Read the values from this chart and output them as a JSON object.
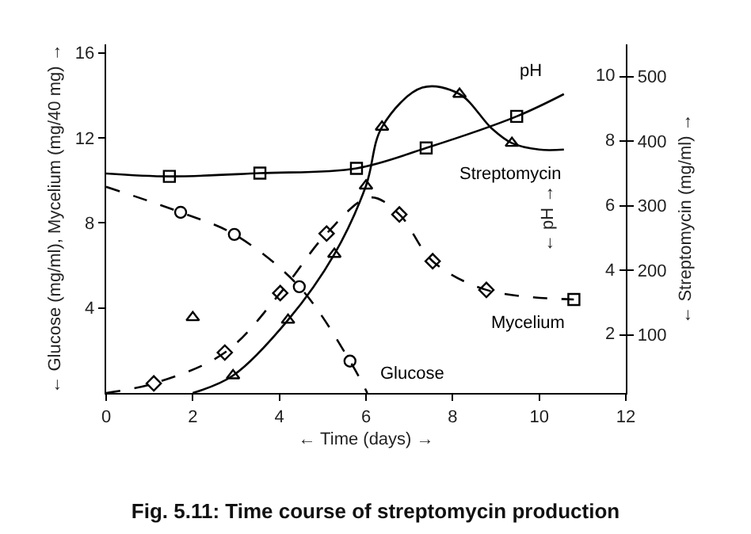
{
  "chart_data": {
    "type": "line",
    "title": "Fig. 5.11: Time course of streptomycin production",
    "xlabel": "← Time (days) →",
    "ylabel": "← Glucose (mg/ml), Mycelium (mg/40 mg) →",
    "y2label": "← pH →",
    "y3label": "← Streptomycin (mg/ml) →",
    "xlim": [
      0,
      12
    ],
    "xticks": [
      0,
      2,
      4,
      6,
      8,
      10,
      12
    ],
    "ylim": [
      0,
      16.4
    ],
    "yticks": [
      4,
      8,
      12,
      16
    ],
    "y2lim": [
      0.2,
      11
    ],
    "y2ticks": [
      2,
      4,
      6,
      8,
      10
    ],
    "y3lim": [
      10,
      550
    ],
    "y3ticks": [
      100,
      200,
      300,
      400,
      500
    ],
    "series": [
      {
        "name": "pH",
        "axis": "y2",
        "color": "#000000",
        "line_style": "solid",
        "marker": "none",
        "x": [
          0,
          1.46,
          3.55,
          5.78,
          7.39,
          9.48,
          10.57
        ],
        "values": [
          7.0,
          6.91,
          7.01,
          7.16,
          7.79,
          8.77,
          9.46
        ]
      },
      {
        "type": "scatter",
        "axis": "y2",
        "color": "#000000",
        "marker": "square",
        "x": [
          1.46,
          3.55,
          5.78,
          7.39,
          9.48
        ],
        "values": [
          6.91,
          7.01,
          7.16,
          7.79,
          8.77
        ]
      },
      {
        "name": "Streptomycin",
        "axis": "y3",
        "color": "#000000",
        "line_style": "solid",
        "marker": "none",
        "x": [
          2.0,
          2.93,
          4.2,
          5.27,
          6.0,
          6.37,
          7.3,
          8.16,
          8.9,
          9.37,
          10.0,
          10.57
        ],
        "values": [
          10,
          37,
          123,
          225,
          331,
          422,
          483,
          473,
          420,
          397,
          387,
          387
        ]
      },
      {
        "type": "scatter",
        "axis": "y3",
        "color": "#000000",
        "marker": "triangle",
        "x": [
          2.93,
          4.2,
          5.27,
          6.0,
          6.37,
          8.16,
          9.37
        ],
        "values": [
          37,
          123,
          225,
          331,
          422,
          473,
          397
        ]
      },
      {
        "type": "scatter",
        "axis": "y3",
        "color": "#000000",
        "marker": "triangle",
        "x": [
          2.0
        ],
        "values": [
          127
        ]
      },
      {
        "name": "Glucose",
        "color": "#000000",
        "line_style": "dashed",
        "marker": "none",
        "x": [
          0,
          1.72,
          2.96,
          4.46,
          5.63,
          6.03
        ],
        "values": [
          9.7,
          8.5,
          7.46,
          5.0,
          1.5,
          0
        ]
      },
      {
        "type": "scatter",
        "color": "#000000",
        "marker": "circle",
        "x": [
          1.72,
          2.96,
          4.46,
          5.63
        ],
        "values": [
          8.5,
          7.46,
          5.0,
          1.5
        ]
      },
      {
        "name": "Mycelium",
        "color": "#000000",
        "line_style": "dashed",
        "marker": "none",
        "x": [
          0,
          1.1,
          2.74,
          4.02,
          5.09,
          6.1,
          6.77,
          7.54,
          8.78,
          10.8
        ],
        "values": [
          0,
          0.45,
          1.9,
          4.7,
          7.5,
          9.2,
          8.4,
          6.2,
          4.85,
          4.4
        ]
      },
      {
        "type": "scatter",
        "color": "#000000",
        "marker": "diamond",
        "x": [
          1.1,
          2.74,
          4.02,
          5.09,
          6.77,
          7.54,
          8.78
        ],
        "values": [
          0.45,
          1.9,
          4.7,
          7.5,
          8.4,
          6.2,
          4.85
        ]
      },
      {
        "type": "scatter",
        "color": "#000000",
        "marker": "square",
        "x": [
          10.8
        ],
        "values": [
          4.4
        ]
      }
    ]
  }
}
